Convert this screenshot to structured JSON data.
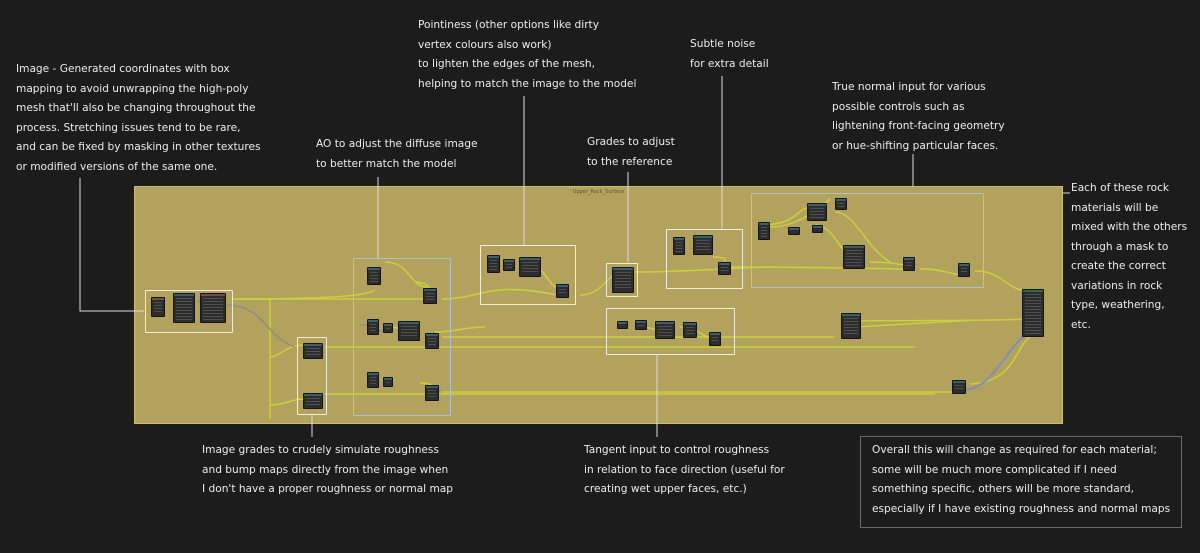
{
  "frame": {
    "title": "Upper_Rock_Surface"
  },
  "annotations": {
    "image_coords": "Image - Generated coordinates with box\nmapping to avoid unwrapping the high-poly\nmesh that'll also be changing throughout the\nprocess. Stretching issues tend to be rare,\nand can be fixed by masking in other textures\nor modified versions of the same one.",
    "ao": "AO to adjust the diffuse image\nto better match the model",
    "pointiness": "Pointiness (other options like dirty\nvertex colours also work)\nto lighten the edges of the mesh,\nhelping to match the image to the model",
    "grades": "Grades to adjust\nto the reference",
    "noise": "Subtle noise\nfor extra detail",
    "normal": "True normal input for various\npossible controls such as\nlightening front-facing geometry\nor hue-shifting particular faces.",
    "mix": "Each of these rock\nmaterials will be\nmixed with the others\nthrough a mask to\ncreate the correct\nvariations in rock\ntype, weathering,\netc.",
    "image_grades": "Image grades to crudely simulate roughness\nand bump maps directly from the image when\nI don't have a proper roughness or normal map",
    "tangent": "Tangent input to control roughness\nin relation to face direction (useful for\ncreating wet upper faces, etc.)",
    "overall": "Overall this will change as required for each material;\nsome will be much more complicated if I need\nsomething specific, others will be more standard,\nespecially if I have existing roughness and normal maps"
  },
  "colors": {
    "background": "#1c1c1c",
    "frame": "#b3a25e",
    "wire_color": "#c9d23a",
    "wire_grey": "#8a8a8a",
    "wire_blue": "#7f8fb8",
    "highlight_white": "#f2eedc",
    "highlight_blue": "#a9c4cc"
  }
}
